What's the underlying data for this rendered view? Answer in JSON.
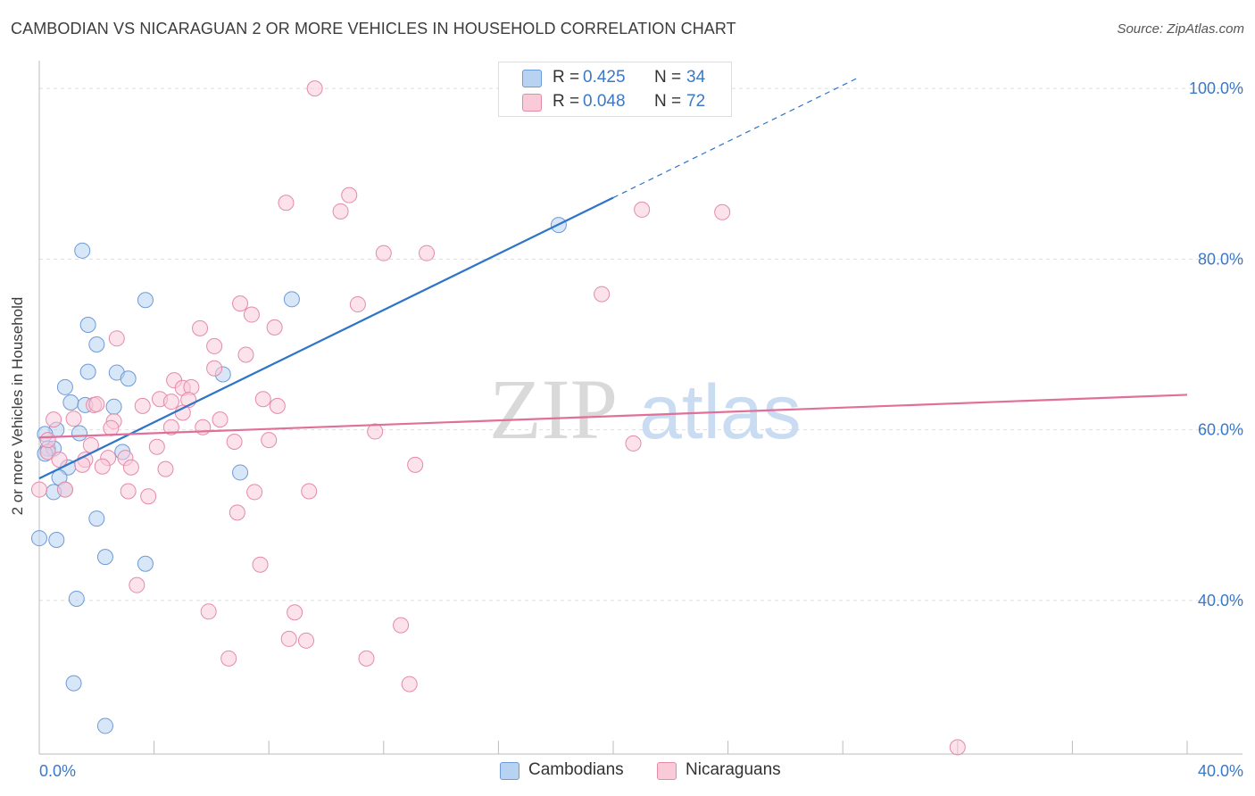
{
  "title": "CAMBODIAN VS NICARAGUAN 2 OR MORE VEHICLES IN HOUSEHOLD CORRELATION CHART",
  "source": "Source: ZipAtlas.com",
  "watermark": {
    "zip": "ZIP",
    "atlas": "atlas"
  },
  "colors": {
    "cambodian_fill": "#b8d3f2",
    "cambodian_stroke": "#6d9ad8",
    "cambodian_line": "#2e74c8",
    "nicaraguan_fill": "#f9cbd8",
    "nicaraguan_stroke": "#e58aa8",
    "nicaraguan_line": "#e0709a",
    "tick_label": "#3a78c8",
    "grid": "#dddddd"
  },
  "stats": [
    {
      "r_label": "R =",
      "r_value": "0.425",
      "n_label": "N =",
      "n_value": "34"
    },
    {
      "r_label": "R =",
      "r_value": "0.048",
      "n_label": "N =",
      "n_value": "72"
    }
  ],
  "legend": [
    "Cambodians",
    "Nicaraguans"
  ],
  "chart_data": {
    "type": "scatter",
    "title": "CAMBODIAN VS NICARAGUAN 2 OR MORE VEHICLES IN HOUSEHOLD CORRELATION CHART",
    "xlabel": "",
    "ylabel": "2 or more Vehicles in Household",
    "xlim": [
      0,
      40
    ],
    "ylim": [
      22,
      102
    ],
    "x_tick_labels": [
      {
        "value": 0,
        "label": "0.0%"
      },
      {
        "value": 40,
        "label": "40.0%"
      }
    ],
    "y_tick_labels": [
      {
        "value": 100,
        "label": "100.0%"
      },
      {
        "value": 80,
        "label": "80.0%"
      },
      {
        "value": 60,
        "label": "60.0%"
      },
      {
        "value": 40,
        "label": "40.0%"
      }
    ],
    "y_grid": [
      100,
      80,
      60,
      40
    ],
    "series": [
      {
        "name": "Cambodians",
        "r": 0.425,
        "n": 34,
        "trend": {
          "x0": 0,
          "y0": 54.3,
          "x1": 20,
          "y1": 87.2,
          "dash_to_x": 28.5,
          "dash_to_y": 101.2
        },
        "points": [
          [
            1.5,
            81.0
          ],
          [
            3.7,
            75.2
          ],
          [
            8.8,
            75.3
          ],
          [
            1.7,
            72.3
          ],
          [
            2.0,
            70.0
          ],
          [
            1.7,
            66.8
          ],
          [
            2.7,
            66.7
          ],
          [
            3.1,
            66.0
          ],
          [
            6.4,
            66.5
          ],
          [
            0.9,
            65.0
          ],
          [
            1.1,
            63.2
          ],
          [
            1.6,
            62.9
          ],
          [
            2.6,
            62.7
          ],
          [
            0.6,
            60.0
          ],
          [
            1.4,
            59.6
          ],
          [
            0.2,
            59.5
          ],
          [
            0.3,
            57.8
          ],
          [
            0.5,
            57.8
          ],
          [
            2.9,
            57.4
          ],
          [
            0.2,
            57.2
          ],
          [
            1.0,
            55.6
          ],
          [
            7.0,
            55.0
          ],
          [
            0.7,
            54.4
          ],
          [
            0.9,
            53.0
          ],
          [
            0.5,
            52.7
          ],
          [
            2.0,
            49.6
          ],
          [
            0.0,
            47.3
          ],
          [
            0.6,
            47.1
          ],
          [
            2.3,
            45.1
          ],
          [
            3.7,
            44.3
          ],
          [
            1.3,
            40.2
          ],
          [
            1.2,
            30.3
          ],
          [
            2.3,
            25.3
          ],
          [
            18.1,
            84.0
          ]
        ]
      },
      {
        "name": "Nicaraguans",
        "r": 0.048,
        "n": 72,
        "trend": {
          "x0": 0,
          "y0": 59.1,
          "x1": 40,
          "y1": 64.1
        },
        "points": [
          [
            9.6,
            100.0
          ],
          [
            10.8,
            87.5
          ],
          [
            8.6,
            86.6
          ],
          [
            10.5,
            85.6
          ],
          [
            21.0,
            85.8
          ],
          [
            23.8,
            85.5
          ],
          [
            12.0,
            80.7
          ],
          [
            13.5,
            80.7
          ],
          [
            19.6,
            75.9
          ],
          [
            7.0,
            74.8
          ],
          [
            11.1,
            74.7
          ],
          [
            7.4,
            73.5
          ],
          [
            8.2,
            72.0
          ],
          [
            5.6,
            71.9
          ],
          [
            2.7,
            70.7
          ],
          [
            6.1,
            69.8
          ],
          [
            7.2,
            68.8
          ],
          [
            6.1,
            67.2
          ],
          [
            4.7,
            65.8
          ],
          [
            5.0,
            64.9
          ],
          [
            5.3,
            65.0
          ],
          [
            4.2,
            63.6
          ],
          [
            4.6,
            63.3
          ],
          [
            5.2,
            63.5
          ],
          [
            7.8,
            63.6
          ],
          [
            3.6,
            62.8
          ],
          [
            8.3,
            62.8
          ],
          [
            1.9,
            62.9
          ],
          [
            5.0,
            62.0
          ],
          [
            0.5,
            61.2
          ],
          [
            1.2,
            61.3
          ],
          [
            2.6,
            61.0
          ],
          [
            6.3,
            61.2
          ],
          [
            2.5,
            60.2
          ],
          [
            4.6,
            60.3
          ],
          [
            5.7,
            60.3
          ],
          [
            11.7,
            59.8
          ],
          [
            8.0,
            58.8
          ],
          [
            6.8,
            58.6
          ],
          [
            1.8,
            58.2
          ],
          [
            4.1,
            58.0
          ],
          [
            20.7,
            58.4
          ],
          [
            0.3,
            57.4
          ],
          [
            0.7,
            56.5
          ],
          [
            2.4,
            56.7
          ],
          [
            3.0,
            56.7
          ],
          [
            1.6,
            56.5
          ],
          [
            1.5,
            55.9
          ],
          [
            2.2,
            55.7
          ],
          [
            13.1,
            55.9
          ],
          [
            3.2,
            55.6
          ],
          [
            4.4,
            55.4
          ],
          [
            0.0,
            53.0
          ],
          [
            0.9,
            53.0
          ],
          [
            3.1,
            52.8
          ],
          [
            7.5,
            52.7
          ],
          [
            9.4,
            52.8
          ],
          [
            3.8,
            52.2
          ],
          [
            6.9,
            50.3
          ],
          [
            7.7,
            44.2
          ],
          [
            3.4,
            41.8
          ],
          [
            5.9,
            38.7
          ],
          [
            8.9,
            38.6
          ],
          [
            12.6,
            37.1
          ],
          [
            8.7,
            35.5
          ],
          [
            9.3,
            35.3
          ],
          [
            6.6,
            33.2
          ],
          [
            11.4,
            33.2
          ],
          [
            12.9,
            30.2
          ],
          [
            32.0,
            22.8
          ],
          [
            2.0,
            63.0
          ],
          [
            0.3,
            58.8
          ]
        ]
      }
    ]
  }
}
